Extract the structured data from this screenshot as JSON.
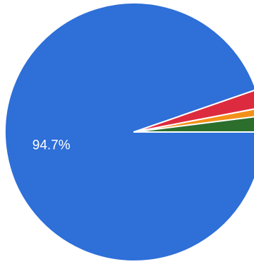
{
  "chart_data": {
    "type": "pie",
    "slices": [
      {
        "name": "",
        "value": 94.7,
        "color": "#2e6fd8"
      },
      {
        "name": "",
        "value": 2.3,
        "color": "#dc2b3f"
      },
      {
        "name": "",
        "value": 1.0,
        "color": "#f39019"
      },
      {
        "name": "",
        "value": 2.0,
        "color": "#2c6e2c"
      }
    ],
    "labels": [
      "94.7%",
      "",
      "",
      ""
    ],
    "title": "",
    "legend": "none"
  }
}
